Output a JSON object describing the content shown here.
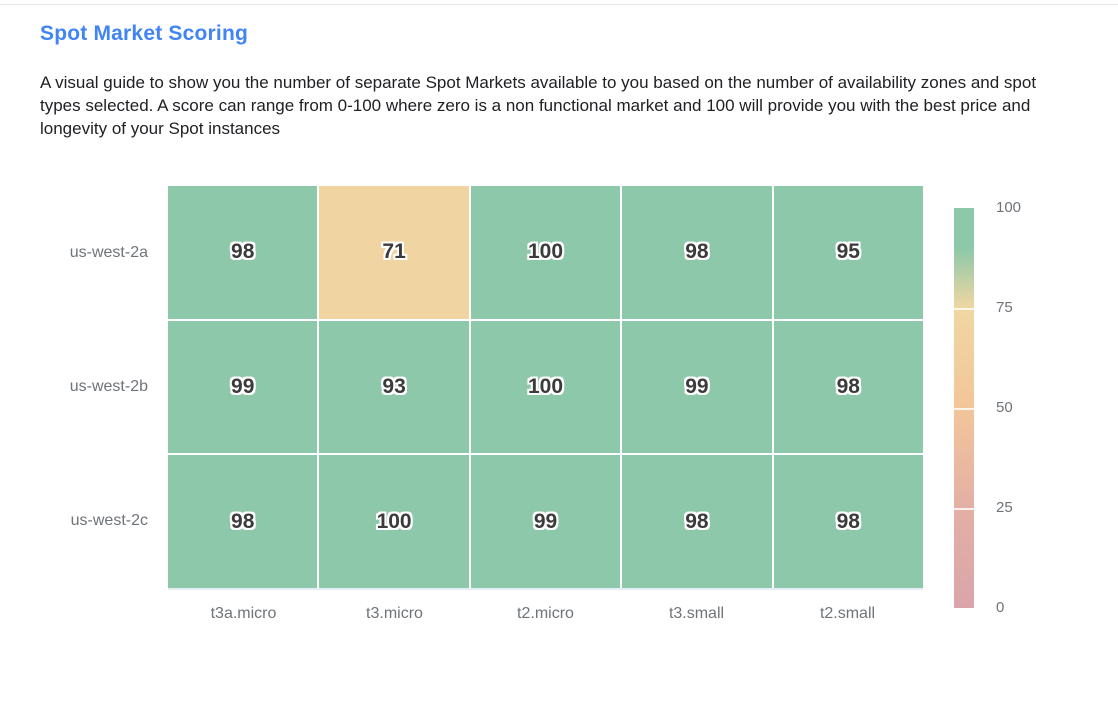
{
  "header": {
    "title": "Spot Market Scoring",
    "description": "A visual guide to show you the number of separate Spot Markets available to you based on the number of availability zones and spot types selected. A score can range from 0-100 where zero is a non functional market and 100 will provide you with the best price and longevity of your Spot instances"
  },
  "colors": {
    "title_blue": "#4184f4",
    "body_text": "#202124",
    "axis_label_gray": "#6f7479",
    "cell_value_text": "#3b3b3b",
    "cell_green": "#8cc8a9",
    "cell_tan": "#f0d4a0",
    "grid_gap_white": "#ffffff"
  },
  "chart_data": {
    "type": "heatmap",
    "title": "Spot Market Scoring",
    "rows": [
      "us-west-2a",
      "us-west-2b",
      "us-west-2c"
    ],
    "columns": [
      "t3a.micro",
      "t3.micro",
      "t2.micro",
      "t3.small",
      "t2.small"
    ],
    "values": [
      [
        98,
        71,
        100,
        98,
        95
      ],
      [
        99,
        93,
        100,
        99,
        98
      ],
      [
        98,
        100,
        99,
        98,
        98
      ]
    ],
    "value_range": [
      0,
      100
    ],
    "grid_lines": "white 2px between cells",
    "legend_position": "right",
    "colorbar": {
      "min": 0,
      "max": 100,
      "ticks": [
        100,
        75,
        50,
        25,
        0
      ],
      "stops": [
        {
          "value": 0,
          "color": "#d9a5ab"
        },
        {
          "value": 25,
          "color": "#e2b0a5"
        },
        {
          "value": 50,
          "color": "#f2c69a"
        },
        {
          "value": 75,
          "color": "#f0d7a2"
        },
        {
          "value": 90,
          "color": "#8cc8a9"
        },
        {
          "value": 100,
          "color": "#8cc8a9"
        }
      ]
    }
  }
}
